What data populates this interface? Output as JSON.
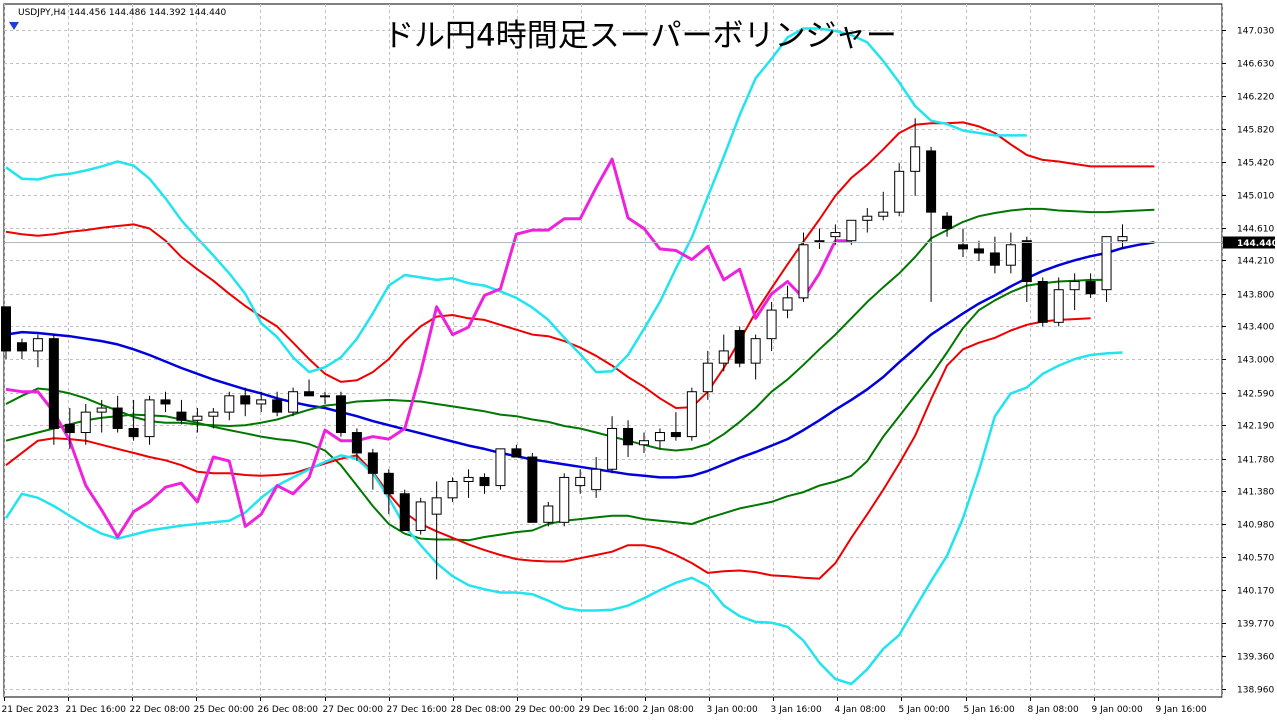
{
  "chart_data": {
    "type": "candlestick",
    "title": "ドル円4時間足スーパーボリンジャー",
    "symbol_info": "USDJPY,H4  144.456 144.486 144.392 144.440",
    "current_price": "144.440",
    "current_price_value": 144.44,
    "y_ticks": [
      "147.030",
      "146.630",
      "146.220",
      "145.820",
      "145.420",
      "145.010",
      "144.610",
      "144.210",
      "143.800",
      "143.400",
      "143.000",
      "142.590",
      "142.190",
      "141.780",
      "141.380",
      "140.980",
      "140.570",
      "140.170",
      "139.770",
      "139.360",
      "138.960"
    ],
    "x_labels": [
      "21 Dec 2023",
      "21 Dec 16:00",
      "22 Dec 08:00",
      "25 Dec 00:00",
      "26 Dec 08:00",
      "27 Dec 00:00",
      "27 Dec 16:00",
      "28 Dec 08:00",
      "29 Dec 00:00",
      "29 Dec 16:00",
      "2 Jan 08:00",
      "3 Jan 00:00",
      "3 Jan 16:00",
      "4 Jan 08:00",
      "5 Jan 00:00",
      "5 Jan 16:00",
      "8 Jan 08:00",
      "9 Jan 00:00",
      "9 Jan 16:00"
    ],
    "ylim": [
      138.86,
      147.35
    ],
    "grid": true,
    "colors": {
      "background": "#ffffff",
      "grid": "#c0c0c0",
      "candle_up": "#ffffff",
      "candle_down": "#000000",
      "candle_outline": "#000000",
      "middle_band": "#0000dd",
      "sigma1": "#007700",
      "sigma2": "#ee0000",
      "sigma3": "#22e4ee",
      "chikou": "#ee22dd",
      "price_line": "#b0b8c0",
      "price_tag": "#000000",
      "marker": "#1f3fd0"
    },
    "candles": [
      [
        143.64,
        143.64,
        143.0,
        143.1
      ],
      [
        143.2,
        143.25,
        143.0,
        143.1
      ],
      [
        143.1,
        143.3,
        142.9,
        143.25
      ],
      [
        143.25,
        143.3,
        141.95,
        142.15
      ],
      [
        142.2,
        142.4,
        141.9,
        142.1
      ],
      [
        142.1,
        142.45,
        141.95,
        142.35
      ],
      [
        142.35,
        142.5,
        142.1,
        142.4
      ],
      [
        142.4,
        142.55,
        142.1,
        142.15
      ],
      [
        142.15,
        142.5,
        142.0,
        142.05
      ],
      [
        142.05,
        142.55,
        141.95,
        142.5
      ],
      [
        142.5,
        142.6,
        142.35,
        142.45
      ],
      [
        142.35,
        142.5,
        142.2,
        142.25
      ],
      [
        142.25,
        142.4,
        142.1,
        142.3
      ],
      [
        142.3,
        142.4,
        142.15,
        142.35
      ],
      [
        142.35,
        142.6,
        142.25,
        142.55
      ],
      [
        142.55,
        142.65,
        142.3,
        142.45
      ],
      [
        142.45,
        142.6,
        142.35,
        142.5
      ],
      [
        142.5,
        142.6,
        142.3,
        142.35
      ],
      [
        142.35,
        142.65,
        142.3,
        142.6
      ],
      [
        142.6,
        142.75,
        142.55,
        142.55
      ],
      [
        142.55,
        142.6,
        142.45,
        142.55
      ],
      [
        142.55,
        142.6,
        142.05,
        142.1
      ],
      [
        142.1,
        142.15,
        141.75,
        141.85
      ],
      [
        141.85,
        141.9,
        141.4,
        141.6
      ],
      [
        141.6,
        141.65,
        141.1,
        141.35
      ],
      [
        141.35,
        141.4,
        140.9,
        140.9
      ],
      [
        140.9,
        141.3,
        140.85,
        141.25
      ],
      [
        141.1,
        141.5,
        140.3,
        141.3
      ],
      [
        141.3,
        141.55,
        141.25,
        141.5
      ],
      [
        141.5,
        141.65,
        141.3,
        141.55
      ],
      [
        141.55,
        141.6,
        141.35,
        141.45
      ],
      [
        141.45,
        141.9,
        141.4,
        141.9
      ],
      [
        141.9,
        141.95,
        141.8,
        141.8
      ],
      [
        141.8,
        141.85,
        141.0,
        141.0
      ],
      [
        141.0,
        141.25,
        140.95,
        141.2
      ],
      [
        141.0,
        141.6,
        140.95,
        141.55
      ],
      [
        141.45,
        141.65,
        141.35,
        141.55
      ],
      [
        141.4,
        141.8,
        141.3,
        141.65
      ],
      [
        141.65,
        142.3,
        141.6,
        142.15
      ],
      [
        142.15,
        142.25,
        141.8,
        141.95
      ],
      [
        141.95,
        142.1,
        141.85,
        142.0
      ],
      [
        142.0,
        142.15,
        141.9,
        142.1
      ],
      [
        142.1,
        142.35,
        142.0,
        142.05
      ],
      [
        142.05,
        142.65,
        142.0,
        142.6
      ],
      [
        142.6,
        143.1,
        142.5,
        142.95
      ],
      [
        142.95,
        143.3,
        142.85,
        143.1
      ],
      [
        143.35,
        143.4,
        142.9,
        142.95
      ],
      [
        142.95,
        143.3,
        142.75,
        143.25
      ],
      [
        143.25,
        143.7,
        143.1,
        143.6
      ],
      [
        143.6,
        143.9,
        143.5,
        143.75
      ],
      [
        143.75,
        144.55,
        143.7,
        144.4
      ],
      [
        144.45,
        144.6,
        144.35,
        144.45
      ],
      [
        144.5,
        144.65,
        144.4,
        144.55
      ],
      [
        144.45,
        144.7,
        144.4,
        144.7
      ],
      [
        144.7,
        144.85,
        144.55,
        144.75
      ],
      [
        144.75,
        145.05,
        144.7,
        144.8
      ],
      [
        144.8,
        145.4,
        144.75,
        145.3
      ],
      [
        145.3,
        145.95,
        145.0,
        145.6
      ],
      [
        145.55,
        145.6,
        143.7,
        144.8
      ],
      [
        144.75,
        144.8,
        144.5,
        144.6
      ],
      [
        144.4,
        144.6,
        144.25,
        144.35
      ],
      [
        144.35,
        144.45,
        144.2,
        144.3
      ],
      [
        144.3,
        144.5,
        144.05,
        144.15
      ],
      [
        144.15,
        144.55,
        144.05,
        144.4
      ],
      [
        144.45,
        144.5,
        143.7,
        143.95
      ],
      [
        143.95,
        144.0,
        143.4,
        143.45
      ],
      [
        143.45,
        144.0,
        143.4,
        143.85
      ],
      [
        143.85,
        144.05,
        143.6,
        143.95
      ],
      [
        143.95,
        144.05,
        143.75,
        143.8
      ],
      [
        143.85,
        144.5,
        143.7,
        144.5
      ],
      [
        144.45,
        144.65,
        144.35,
        144.5
      ]
    ],
    "series": [
      {
        "key": "mid",
        "values": [
          143.3,
          143.33,
          143.32,
          143.3,
          143.28,
          143.25,
          143.22,
          143.18,
          143.12,
          143.05,
          142.97,
          142.89,
          142.82,
          142.75,
          142.69,
          142.63,
          142.58,
          142.52,
          142.47,
          142.43,
          142.4,
          142.35,
          142.3,
          142.24,
          142.19,
          142.14,
          142.09,
          142.04,
          141.99,
          141.94,
          141.9,
          141.85,
          141.81,
          141.77,
          141.74,
          141.71,
          141.68,
          141.65,
          141.62,
          141.59,
          141.57,
          141.55,
          141.55,
          141.57,
          141.63,
          141.71,
          141.79,
          141.86,
          141.94,
          142.02,
          142.13,
          142.25,
          142.38,
          142.5,
          142.63,
          142.78,
          142.96,
          143.13,
          143.3,
          143.43,
          143.56,
          143.68,
          143.78,
          143.89,
          143.99,
          144.08,
          144.15,
          144.21,
          144.26,
          144.3,
          144.36,
          144.4,
          144.43
        ]
      },
      {
        "key": "p1",
        "values": [
          142.45,
          142.55,
          142.64,
          142.62,
          142.58,
          142.52,
          142.44,
          142.37,
          142.29,
          142.24,
          142.22,
          142.22,
          142.2,
          142.19,
          142.18,
          142.19,
          142.22,
          142.26,
          142.32,
          142.38,
          142.43,
          142.45,
          142.48,
          142.49,
          142.5,
          142.49,
          142.48,
          142.45,
          142.42,
          142.39,
          142.36,
          142.32,
          142.3,
          142.26,
          142.23,
          142.18,
          142.15,
          142.1,
          142.05,
          142.0,
          141.95,
          141.9,
          141.88,
          141.9,
          141.96,
          142.08,
          142.23,
          142.4,
          142.6,
          142.75,
          142.93,
          143.12,
          143.3,
          143.5,
          143.7,
          143.88,
          144.05,
          144.25,
          144.48,
          144.58,
          144.68,
          144.75,
          144.79,
          144.82,
          144.84,
          144.84,
          144.82,
          144.81,
          144.8,
          144.8,
          144.81,
          144.82,
          144.83
        ]
      },
      {
        "key": "p2",
        "values": [
          144.56,
          144.53,
          144.51,
          144.53,
          144.56,
          144.58,
          144.61,
          144.63,
          144.65,
          144.6,
          144.45,
          144.25,
          144.1,
          143.96,
          143.8,
          143.65,
          143.52,
          143.4,
          143.2,
          143.0,
          142.82,
          142.72,
          142.74,
          142.84,
          143.0,
          143.22,
          143.4,
          143.52,
          143.54,
          143.5,
          143.48,
          143.42,
          143.36,
          143.3,
          143.28,
          143.22,
          143.14,
          143.04,
          142.92,
          142.78,
          142.66,
          142.52,
          142.4,
          142.41,
          142.6,
          142.89,
          143.23,
          143.57,
          143.87,
          144.16,
          144.44,
          144.71,
          145.0,
          145.22,
          145.38,
          145.57,
          145.77,
          145.87,
          145.89,
          145.89,
          145.9,
          145.85,
          145.77,
          145.63,
          145.5,
          145.44,
          145.42,
          145.39,
          145.36,
          145.36,
          145.36,
          145.36,
          145.36
        ]
      },
      {
        "key": "p3",
        "values": [
          145.35,
          145.21,
          145.2,
          145.25,
          145.27,
          145.31,
          145.36,
          145.42,
          145.37,
          145.21,
          144.97,
          144.7,
          144.48,
          144.27,
          144.05,
          143.8,
          143.44,
          143.27,
          143.02,
          142.84,
          142.9,
          143.02,
          143.25,
          143.56,
          143.9,
          144.03,
          144.0,
          143.97,
          143.99,
          143.93,
          143.9,
          143.83,
          143.75,
          143.63,
          143.48,
          143.26,
          143.06,
          142.84,
          142.85,
          143.05,
          143.37,
          143.7,
          144.11,
          144.49,
          144.99,
          145.48,
          145.99,
          146.44,
          146.68,
          146.94,
          147.05,
          147.05,
          147.02,
          146.97,
          146.88,
          146.65,
          146.39,
          146.1,
          145.92,
          145.88,
          145.8,
          145.77,
          145.74,
          145.74,
          145.74
        ]
      },
      {
        "key": "m1",
        "values": [
          142.0,
          142.05,
          142.1,
          142.15,
          142.2,
          142.25,
          142.28,
          142.3,
          142.32,
          142.31,
          142.3,
          142.26,
          142.22,
          142.17,
          142.13,
          142.09,
          142.05,
          142.02,
          142.0,
          141.96,
          141.88,
          141.7,
          141.45,
          141.2,
          140.98,
          140.86,
          140.8,
          140.79,
          140.79,
          140.78,
          140.82,
          140.85,
          140.88,
          140.9,
          140.98,
          141.02,
          141.04,
          141.06,
          141.08,
          141.08,
          141.04,
          141.02,
          141.0,
          140.98,
          141.05,
          141.11,
          141.17,
          141.21,
          141.25,
          141.32,
          141.37,
          141.45,
          141.5,
          141.57,
          141.75,
          142.05,
          142.3,
          142.55,
          142.8,
          143.08,
          143.38,
          143.6,
          143.72,
          143.82,
          143.9,
          143.93,
          143.95,
          143.96,
          143.97,
          143.97
        ]
      },
      {
        "key": "m2",
        "values": [
          141.7,
          141.85,
          142.0,
          142.03,
          142.02,
          142.0,
          141.95,
          141.9,
          141.85,
          141.8,
          141.76,
          141.7,
          141.62,
          141.6,
          141.6,
          141.58,
          141.57,
          141.58,
          141.6,
          141.66,
          141.72,
          141.78,
          141.82,
          141.62,
          141.35,
          141.12,
          140.98,
          140.89,
          140.81,
          140.73,
          140.66,
          140.6,
          140.55,
          140.53,
          140.52,
          140.52,
          140.56,
          140.6,
          140.64,
          140.72,
          140.72,
          140.68,
          140.6,
          140.5,
          140.38,
          140.4,
          140.41,
          140.39,
          140.35,
          140.34,
          140.32,
          140.31,
          140.5,
          140.81,
          141.1,
          141.4,
          141.72,
          142.06,
          142.51,
          142.92,
          143.12,
          143.2,
          143.26,
          143.35,
          143.42,
          143.46,
          143.48,
          143.49,
          143.5
        ]
      },
      {
        "key": "m3",
        "values": [
          141.05,
          141.35,
          141.3,
          141.2,
          141.08,
          140.96,
          140.86,
          140.8,
          140.85,
          140.9,
          140.93,
          140.96,
          140.98,
          141.0,
          141.02,
          141.12,
          141.3,
          141.45,
          141.55,
          141.65,
          141.74,
          141.82,
          141.78,
          141.6,
          141.3,
          140.95,
          140.72,
          140.5,
          140.34,
          140.23,
          140.18,
          140.14,
          140.14,
          140.12,
          140.04,
          139.95,
          139.92,
          139.92,
          139.93,
          139.98,
          140.07,
          140.17,
          140.26,
          140.32,
          140.22,
          139.98,
          139.85,
          139.78,
          139.77,
          139.72,
          139.55,
          139.28,
          139.08,
          139.02,
          139.2,
          139.45,
          139.62,
          139.95,
          140.28,
          140.59,
          141.05,
          141.63,
          142.3,
          142.58,
          142.65,
          142.82,
          142.92,
          143.0,
          143.05,
          143.07,
          143.08
        ]
      },
      {
        "key": "chikou",
        "values": [
          142.63,
          142.6,
          142.6,
          142.35,
          142.0,
          141.45,
          141.15,
          140.82,
          141.13,
          141.25,
          141.43,
          141.48,
          141.25,
          141.8,
          141.75,
          140.95,
          141.1,
          141.45,
          141.35,
          141.55,
          142.13,
          142.0,
          142.0,
          142.05,
          142.02,
          142.15,
          142.84,
          143.64,
          143.3,
          143.39,
          143.78,
          143.86,
          144.53,
          144.58,
          144.58,
          144.72,
          144.72,
          145.1,
          145.45,
          144.73,
          144.6,
          144.35,
          144.33,
          144.22,
          144.38,
          143.97,
          144.1,
          143.5,
          143.8,
          143.95,
          143.75,
          144.05,
          144.45,
          144.45
        ]
      }
    ]
  }
}
